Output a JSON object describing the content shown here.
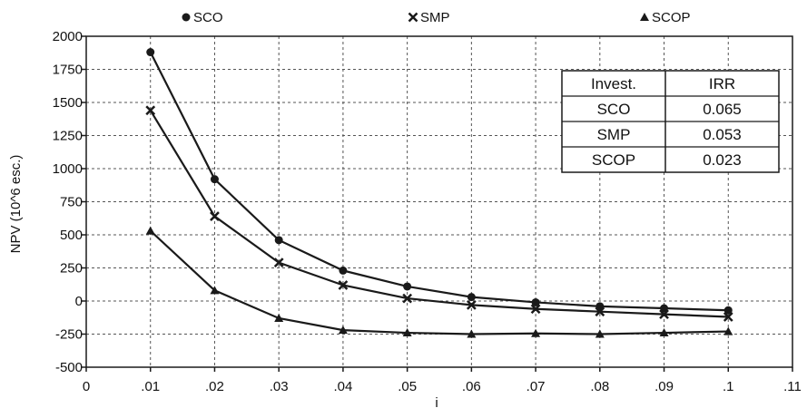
{
  "chart_data": {
    "type": "line",
    "title": "",
    "xlabel": "i",
    "ylabel": "NPV (10^6 esc.)",
    "xlim": [
      0,
      0.11
    ],
    "ylim": [
      -500,
      2000
    ],
    "x_ticks": [
      0,
      0.01,
      0.02,
      0.03,
      0.04,
      0.05,
      0.06,
      0.07,
      0.08,
      0.09,
      0.1,
      0.11
    ],
    "x_tick_labels": [
      "0",
      ".01",
      ".02",
      ".03",
      ".04",
      ".05",
      ".06",
      ".07",
      ".08",
      ".09",
      ".1",
      ".11"
    ],
    "y_ticks": [
      -500,
      -250,
      0,
      250,
      500,
      750,
      1000,
      1250,
      1500,
      1750,
      2000
    ],
    "y_tick_labels": [
      "-500",
      "-250",
      "0",
      "250",
      "500",
      "750",
      "1000",
      "1250",
      "1500",
      "1750",
      "2000"
    ],
    "grid": true,
    "legend_position": "top",
    "x": [
      0.01,
      0.02,
      0.03,
      0.04,
      0.05,
      0.06,
      0.07,
      0.08,
      0.09,
      0.1
    ],
    "series": [
      {
        "name": "SCO",
        "marker": "circle",
        "values": [
          1880,
          920,
          460,
          230,
          110,
          30,
          -10,
          -40,
          -55,
          -70
        ]
      },
      {
        "name": "SMP",
        "marker": "cross",
        "values": [
          1440,
          640,
          290,
          120,
          20,
          -30,
          -60,
          -80,
          -100,
          -120
        ]
      },
      {
        "name": "SCOP",
        "marker": "triangle",
        "values": [
          530,
          80,
          -130,
          -220,
          -240,
          -250,
          -245,
          -250,
          -240,
          -230
        ]
      }
    ],
    "table": {
      "headers": [
        "Invest.",
        "IRR"
      ],
      "rows": [
        [
          "SCO",
          "0.065"
        ],
        [
          "SMP",
          "0.053"
        ],
        [
          "SCOP",
          "0.023"
        ]
      ]
    }
  },
  "colors": {
    "line": "#1a1a1a",
    "grid": "#555555",
    "background": "#ffffff"
  }
}
